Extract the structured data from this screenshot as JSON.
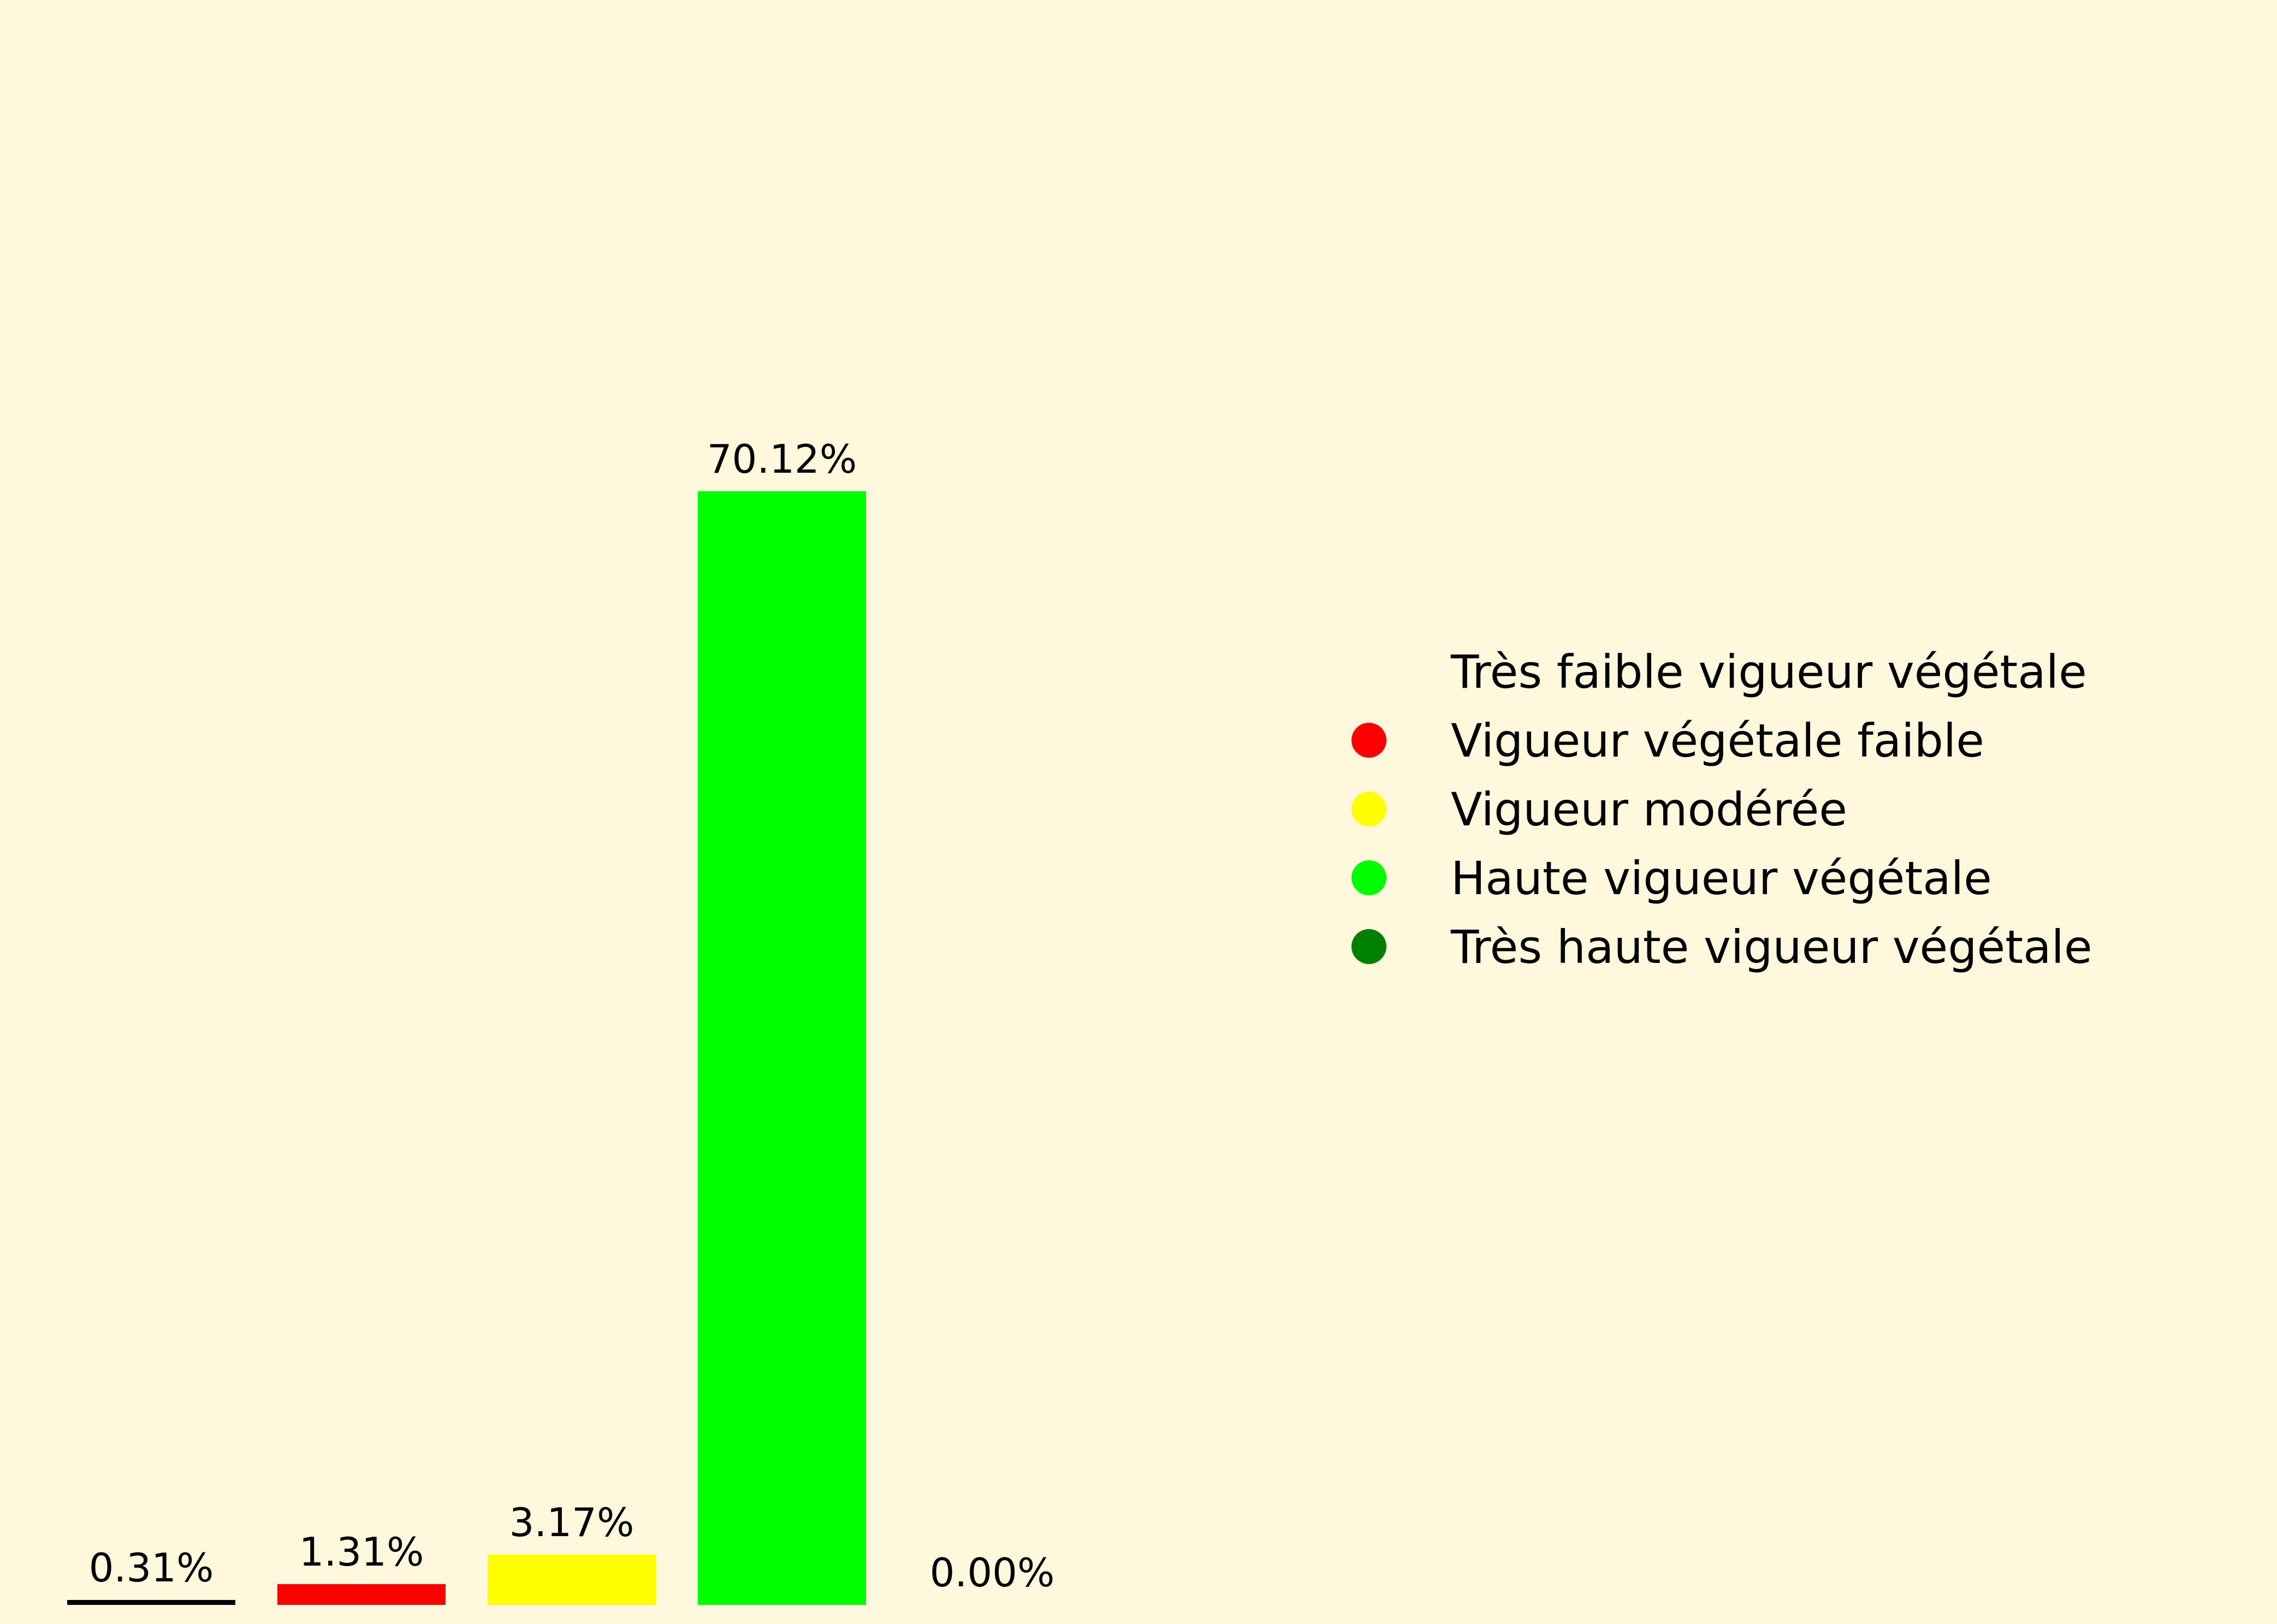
{
  "chart_data": {
    "type": "bar",
    "categories": [
      "Très faible vigueur végétale",
      "Vigueur végétale faible",
      "Vigueur modérée",
      "Haute vigueur végétale",
      "Très haute vigueur végétale"
    ],
    "values": [
      0.31,
      1.31,
      3.17,
      70.12,
      0.0
    ],
    "value_labels": [
      "0.31%",
      "1.31%",
      "3.17%",
      "70.12%",
      "0.00%"
    ],
    "colors": [
      "#000000",
      "#ff0000",
      "#ffff00",
      "#00ff00",
      "#008000"
    ],
    "ylim": [
      0,
      100
    ],
    "grid": false,
    "axes_visible": false,
    "legend_position": "right",
    "background": "#fff8dc"
  }
}
